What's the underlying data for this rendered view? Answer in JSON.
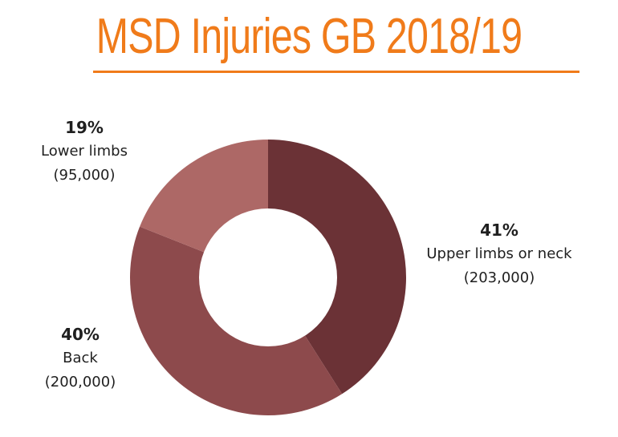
{
  "title": "MSD Injuries GB 2018/19",
  "colors": {
    "title": "#F07B1A",
    "segments": [
      "#6B3236",
      "#8D4A4C",
      "#AD6866"
    ],
    "hole": "#FFFFFF"
  },
  "chart_data": {
    "type": "pie",
    "variant": "donut",
    "title": "MSD Injuries GB 2018/19",
    "slices": [
      {
        "name": "Upper limbs or neck",
        "percent": 41,
        "value": 203000,
        "percent_label": "41%",
        "value_label": "(203,000)"
      },
      {
        "name": "Back",
        "percent": 40,
        "value": 200000,
        "percent_label": "40%",
        "value_label": "(200,000)"
      },
      {
        "name": "Lower limbs",
        "percent": 19,
        "value": 95000,
        "percent_label": "19%",
        "value_label": "(95,000)"
      }
    ],
    "start_position": "top",
    "direction": "clockwise",
    "legend": "none",
    "labels_placement": "outside"
  }
}
